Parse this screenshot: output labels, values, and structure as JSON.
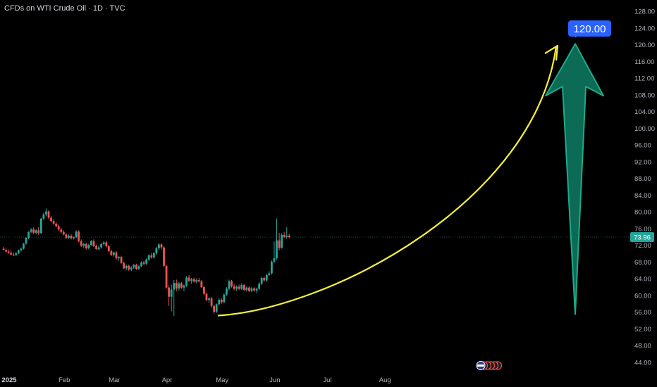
{
  "header": {
    "title": "CFDs on WTI Crude Oil · 1D · TVC"
  },
  "colors": {
    "up": "#26a69a",
    "down": "#ef5350",
    "curve": "#f7ef3c",
    "arrow_fill": "#0b6b55",
    "arrow_stroke": "#1fa98a",
    "target_bg": "#2962ff",
    "price_tag": "#26a69a",
    "text": "#b2b5be"
  },
  "chart_data": {
    "type": "candlestick",
    "y_axis": {
      "ticks": [
        "128.00",
        "124.00",
        "120.00",
        "116.00",
        "112.00",
        "108.00",
        "104.00",
        "100.00",
        "96.00",
        "92.00",
        "88.00",
        "84.00",
        "80.00",
        "76.00",
        "72.00",
        "68.00",
        "64.00",
        "60.00",
        "56.00",
        "52.00",
        "48.00",
        "44.00"
      ],
      "range": [
        43,
        129
      ]
    },
    "x_axis": {
      "ticks": [
        {
          "label": "2025",
          "index": 0,
          "bold": true
        },
        {
          "label": "Feb",
          "index": 22
        },
        {
          "label": "Mar",
          "index": 42
        },
        {
          "label": "Apr",
          "index": 63
        },
        {
          "label": "May",
          "index": 85
        },
        {
          "label": "Jun",
          "index": 106
        },
        {
          "label": "Jul",
          "index": 127
        },
        {
          "label": "Aug",
          "index": 150
        }
      ]
    },
    "last_price": {
      "label": "73.96",
      "value": 73.96
    },
    "target": {
      "label": "120.00",
      "value": 120.0
    },
    "candles": [
      {
        "o": 71.2,
        "h": 71.6,
        "l": 70.8,
        "c": 70.9
      },
      {
        "o": 70.9,
        "h": 71.3,
        "l": 70.3,
        "c": 70.5
      },
      {
        "o": 70.5,
        "h": 71.0,
        "l": 70.0,
        "c": 70.2
      },
      {
        "o": 70.2,
        "h": 70.8,
        "l": 69.6,
        "c": 69.8
      },
      {
        "o": 69.8,
        "h": 70.3,
        "l": 69.4,
        "c": 69.7
      },
      {
        "o": 69.7,
        "h": 70.4,
        "l": 69.4,
        "c": 70.1
      },
      {
        "o": 70.1,
        "h": 71.0,
        "l": 69.9,
        "c": 70.8
      },
      {
        "o": 70.8,
        "h": 71.5,
        "l": 70.5,
        "c": 71.2
      },
      {
        "o": 71.2,
        "h": 72.6,
        "l": 71.0,
        "c": 72.4
      },
      {
        "o": 72.4,
        "h": 73.9,
        "l": 72.2,
        "c": 73.8
      },
      {
        "o": 73.8,
        "h": 75.4,
        "l": 73.5,
        "c": 75.2
      },
      {
        "o": 75.2,
        "h": 76.1,
        "l": 74.9,
        "c": 75.8
      },
      {
        "o": 75.8,
        "h": 76.3,
        "l": 74.7,
        "c": 75.0
      },
      {
        "o": 75.0,
        "h": 75.9,
        "l": 74.6,
        "c": 75.6
      },
      {
        "o": 75.6,
        "h": 76.4,
        "l": 74.5,
        "c": 74.9
      },
      {
        "o": 74.9,
        "h": 78.6,
        "l": 74.8,
        "c": 78.4
      },
      {
        "o": 78.4,
        "h": 79.8,
        "l": 78.1,
        "c": 79.4
      },
      {
        "o": 79.4,
        "h": 80.8,
        "l": 79.0,
        "c": 80.1
      },
      {
        "o": 80.1,
        "h": 80.4,
        "l": 78.3,
        "c": 78.6
      },
      {
        "o": 78.6,
        "h": 79.0,
        "l": 77.5,
        "c": 77.8
      },
      {
        "o": 77.8,
        "h": 78.2,
        "l": 76.9,
        "c": 77.2
      },
      {
        "o": 77.2,
        "h": 77.5,
        "l": 76.3,
        "c": 76.6
      },
      {
        "o": 76.6,
        "h": 77.0,
        "l": 75.5,
        "c": 75.8
      },
      {
        "o": 75.8,
        "h": 76.2,
        "l": 74.8,
        "c": 75.2
      },
      {
        "o": 75.2,
        "h": 75.6,
        "l": 74.4,
        "c": 74.6
      },
      {
        "o": 74.6,
        "h": 74.9,
        "l": 73.5,
        "c": 73.8
      },
      {
        "o": 73.8,
        "h": 74.6,
        "l": 73.5,
        "c": 74.3
      },
      {
        "o": 74.3,
        "h": 74.7,
        "l": 73.4,
        "c": 73.7
      },
      {
        "o": 73.7,
        "h": 74.1,
        "l": 73.4,
        "c": 73.9
      },
      {
        "o": 73.9,
        "h": 75.6,
        "l": 73.7,
        "c": 75.3
      },
      {
        "o": 75.3,
        "h": 75.6,
        "l": 72.7,
        "c": 73.0
      },
      {
        "o": 73.0,
        "h": 73.4,
        "l": 71.6,
        "c": 71.9
      },
      {
        "o": 71.9,
        "h": 72.6,
        "l": 71.4,
        "c": 72.3
      },
      {
        "o": 72.3,
        "h": 72.6,
        "l": 71.0,
        "c": 71.3
      },
      {
        "o": 71.3,
        "h": 72.4,
        "l": 71.0,
        "c": 72.1
      },
      {
        "o": 72.1,
        "h": 73.3,
        "l": 71.9,
        "c": 73.0
      },
      {
        "o": 73.0,
        "h": 73.4,
        "l": 71.6,
        "c": 71.8
      },
      {
        "o": 71.8,
        "h": 72.2,
        "l": 70.9,
        "c": 71.1
      },
      {
        "o": 71.1,
        "h": 71.8,
        "l": 70.7,
        "c": 71.5
      },
      {
        "o": 71.5,
        "h": 72.6,
        "l": 71.2,
        "c": 72.3
      },
      {
        "o": 72.3,
        "h": 73.0,
        "l": 72.0,
        "c": 72.7
      },
      {
        "o": 72.7,
        "h": 73.1,
        "l": 71.5,
        "c": 71.8
      },
      {
        "o": 71.8,
        "h": 72.1,
        "l": 70.4,
        "c": 70.6
      },
      {
        "o": 70.6,
        "h": 71.0,
        "l": 69.4,
        "c": 69.7
      },
      {
        "o": 69.7,
        "h": 70.5,
        "l": 69.3,
        "c": 70.3
      },
      {
        "o": 70.3,
        "h": 70.6,
        "l": 68.6,
        "c": 68.9
      },
      {
        "o": 68.9,
        "h": 69.4,
        "l": 68.3,
        "c": 69.2
      },
      {
        "o": 69.2,
        "h": 69.5,
        "l": 67.5,
        "c": 67.8
      },
      {
        "o": 67.8,
        "h": 68.1,
        "l": 66.3,
        "c": 66.5
      },
      {
        "o": 66.5,
        "h": 67.4,
        "l": 66.0,
        "c": 67.1
      },
      {
        "o": 67.1,
        "h": 67.4,
        "l": 65.9,
        "c": 66.2
      },
      {
        "o": 66.2,
        "h": 67.0,
        "l": 65.8,
        "c": 66.7
      },
      {
        "o": 66.7,
        "h": 67.6,
        "l": 66.4,
        "c": 67.3
      },
      {
        "o": 67.3,
        "h": 67.6,
        "l": 66.1,
        "c": 66.4
      },
      {
        "o": 66.4,
        "h": 67.3,
        "l": 66.1,
        "c": 67.0
      },
      {
        "o": 67.0,
        "h": 68.2,
        "l": 66.8,
        "c": 67.9
      },
      {
        "o": 67.9,
        "h": 68.3,
        "l": 67.2,
        "c": 67.6
      },
      {
        "o": 67.6,
        "h": 68.9,
        "l": 67.3,
        "c": 68.6
      },
      {
        "o": 68.6,
        "h": 69.9,
        "l": 68.3,
        "c": 69.6
      },
      {
        "o": 69.6,
        "h": 70.2,
        "l": 68.8,
        "c": 69.1
      },
      {
        "o": 69.1,
        "h": 70.4,
        "l": 68.8,
        "c": 70.1
      },
      {
        "o": 70.1,
        "h": 71.6,
        "l": 69.8,
        "c": 71.3
      },
      {
        "o": 71.3,
        "h": 72.6,
        "l": 70.9,
        "c": 72.2
      },
      {
        "o": 72.2,
        "h": 72.5,
        "l": 71.0,
        "c": 71.5
      },
      {
        "o": 71.5,
        "h": 71.8,
        "l": 66.8,
        "c": 67.1
      },
      {
        "o": 67.1,
        "h": 67.4,
        "l": 61.6,
        "c": 61.9
      },
      {
        "o": 61.9,
        "h": 62.4,
        "l": 57.5,
        "c": 59.7
      },
      {
        "o": 59.7,
        "h": 62.6,
        "l": 56.2,
        "c": 61.4
      },
      {
        "o": 61.4,
        "h": 63.7,
        "l": 55.1,
        "c": 63.0
      },
      {
        "o": 63.0,
        "h": 63.8,
        "l": 61.0,
        "c": 61.7
      },
      {
        "o": 61.7,
        "h": 63.3,
        "l": 61.2,
        "c": 62.9
      },
      {
        "o": 62.9,
        "h": 63.2,
        "l": 61.6,
        "c": 61.9
      },
      {
        "o": 61.9,
        "h": 62.6,
        "l": 61.0,
        "c": 62.4
      },
      {
        "o": 62.4,
        "h": 64.6,
        "l": 62.1,
        "c": 64.3
      },
      {
        "o": 64.3,
        "h": 64.9,
        "l": 63.2,
        "c": 63.5
      },
      {
        "o": 63.5,
        "h": 64.2,
        "l": 62.8,
        "c": 63.9
      },
      {
        "o": 63.9,
        "h": 64.3,
        "l": 63.1,
        "c": 63.3
      },
      {
        "o": 63.3,
        "h": 64.1,
        "l": 62.9,
        "c": 63.7
      },
      {
        "o": 63.7,
        "h": 64.2,
        "l": 63.1,
        "c": 63.4
      },
      {
        "o": 63.4,
        "h": 63.7,
        "l": 61.8,
        "c": 62.0
      },
      {
        "o": 62.0,
        "h": 62.3,
        "l": 60.1,
        "c": 60.4
      },
      {
        "o": 60.4,
        "h": 60.7,
        "l": 58.7,
        "c": 58.9
      },
      {
        "o": 58.9,
        "h": 59.6,
        "l": 58.2,
        "c": 59.3
      },
      {
        "o": 59.3,
        "h": 59.7,
        "l": 57.1,
        "c": 57.5
      },
      {
        "o": 57.5,
        "h": 57.8,
        "l": 55.6,
        "c": 56.1
      },
      {
        "o": 56.1,
        "h": 58.1,
        "l": 55.8,
        "c": 57.9
      },
      {
        "o": 57.9,
        "h": 59.3,
        "l": 57.6,
        "c": 59.0
      },
      {
        "o": 59.0,
        "h": 59.3,
        "l": 58.0,
        "c": 58.4
      },
      {
        "o": 58.4,
        "h": 60.5,
        "l": 58.1,
        "c": 60.2
      },
      {
        "o": 60.2,
        "h": 62.0,
        "l": 59.9,
        "c": 61.6
      },
      {
        "o": 61.6,
        "h": 63.8,
        "l": 61.3,
        "c": 63.4
      },
      {
        "o": 63.4,
        "h": 63.7,
        "l": 61.9,
        "c": 62.2
      },
      {
        "o": 62.2,
        "h": 62.8,
        "l": 61.2,
        "c": 61.6
      },
      {
        "o": 61.6,
        "h": 62.4,
        "l": 61.1,
        "c": 62.1
      },
      {
        "o": 62.1,
        "h": 62.6,
        "l": 61.3,
        "c": 61.6
      },
      {
        "o": 61.6,
        "h": 62.9,
        "l": 61.3,
        "c": 62.5
      },
      {
        "o": 62.5,
        "h": 62.8,
        "l": 61.1,
        "c": 61.3
      },
      {
        "o": 61.3,
        "h": 62.2,
        "l": 60.9,
        "c": 61.9
      },
      {
        "o": 61.9,
        "h": 62.2,
        "l": 60.8,
        "c": 61.1
      },
      {
        "o": 61.1,
        "h": 62.0,
        "l": 60.8,
        "c": 61.7
      },
      {
        "o": 61.7,
        "h": 62.0,
        "l": 60.9,
        "c": 61.2
      },
      {
        "o": 61.2,
        "h": 61.9,
        "l": 60.6,
        "c": 61.6
      },
      {
        "o": 61.6,
        "h": 63.2,
        "l": 61.3,
        "c": 62.8
      },
      {
        "o": 62.8,
        "h": 64.5,
        "l": 62.5,
        "c": 64.2
      },
      {
        "o": 64.2,
        "h": 64.5,
        "l": 63.3,
        "c": 63.6
      },
      {
        "o": 63.6,
        "h": 65.2,
        "l": 63.3,
        "c": 64.9
      },
      {
        "o": 64.9,
        "h": 65.8,
        "l": 64.6,
        "c": 65.3
      },
      {
        "o": 65.3,
        "h": 68.4,
        "l": 65.0,
        "c": 68.1
      },
      {
        "o": 68.1,
        "h": 72.9,
        "l": 67.8,
        "c": 68.9
      },
      {
        "o": 68.9,
        "h": 78.4,
        "l": 68.6,
        "c": 73.2
      },
      {
        "o": 73.2,
        "h": 75.0,
        "l": 70.8,
        "c": 71.4
      },
      {
        "o": 71.4,
        "h": 74.9,
        "l": 71.2,
        "c": 74.5
      },
      {
        "o": 74.5,
        "h": 75.1,
        "l": 73.7,
        "c": 74.0
      },
      {
        "o": 74.0,
        "h": 76.3,
        "l": 73.6,
        "c": 74.3
      },
      {
        "o": 74.3,
        "h": 74.8,
        "l": 73.7,
        "c": 73.96
      }
    ]
  }
}
